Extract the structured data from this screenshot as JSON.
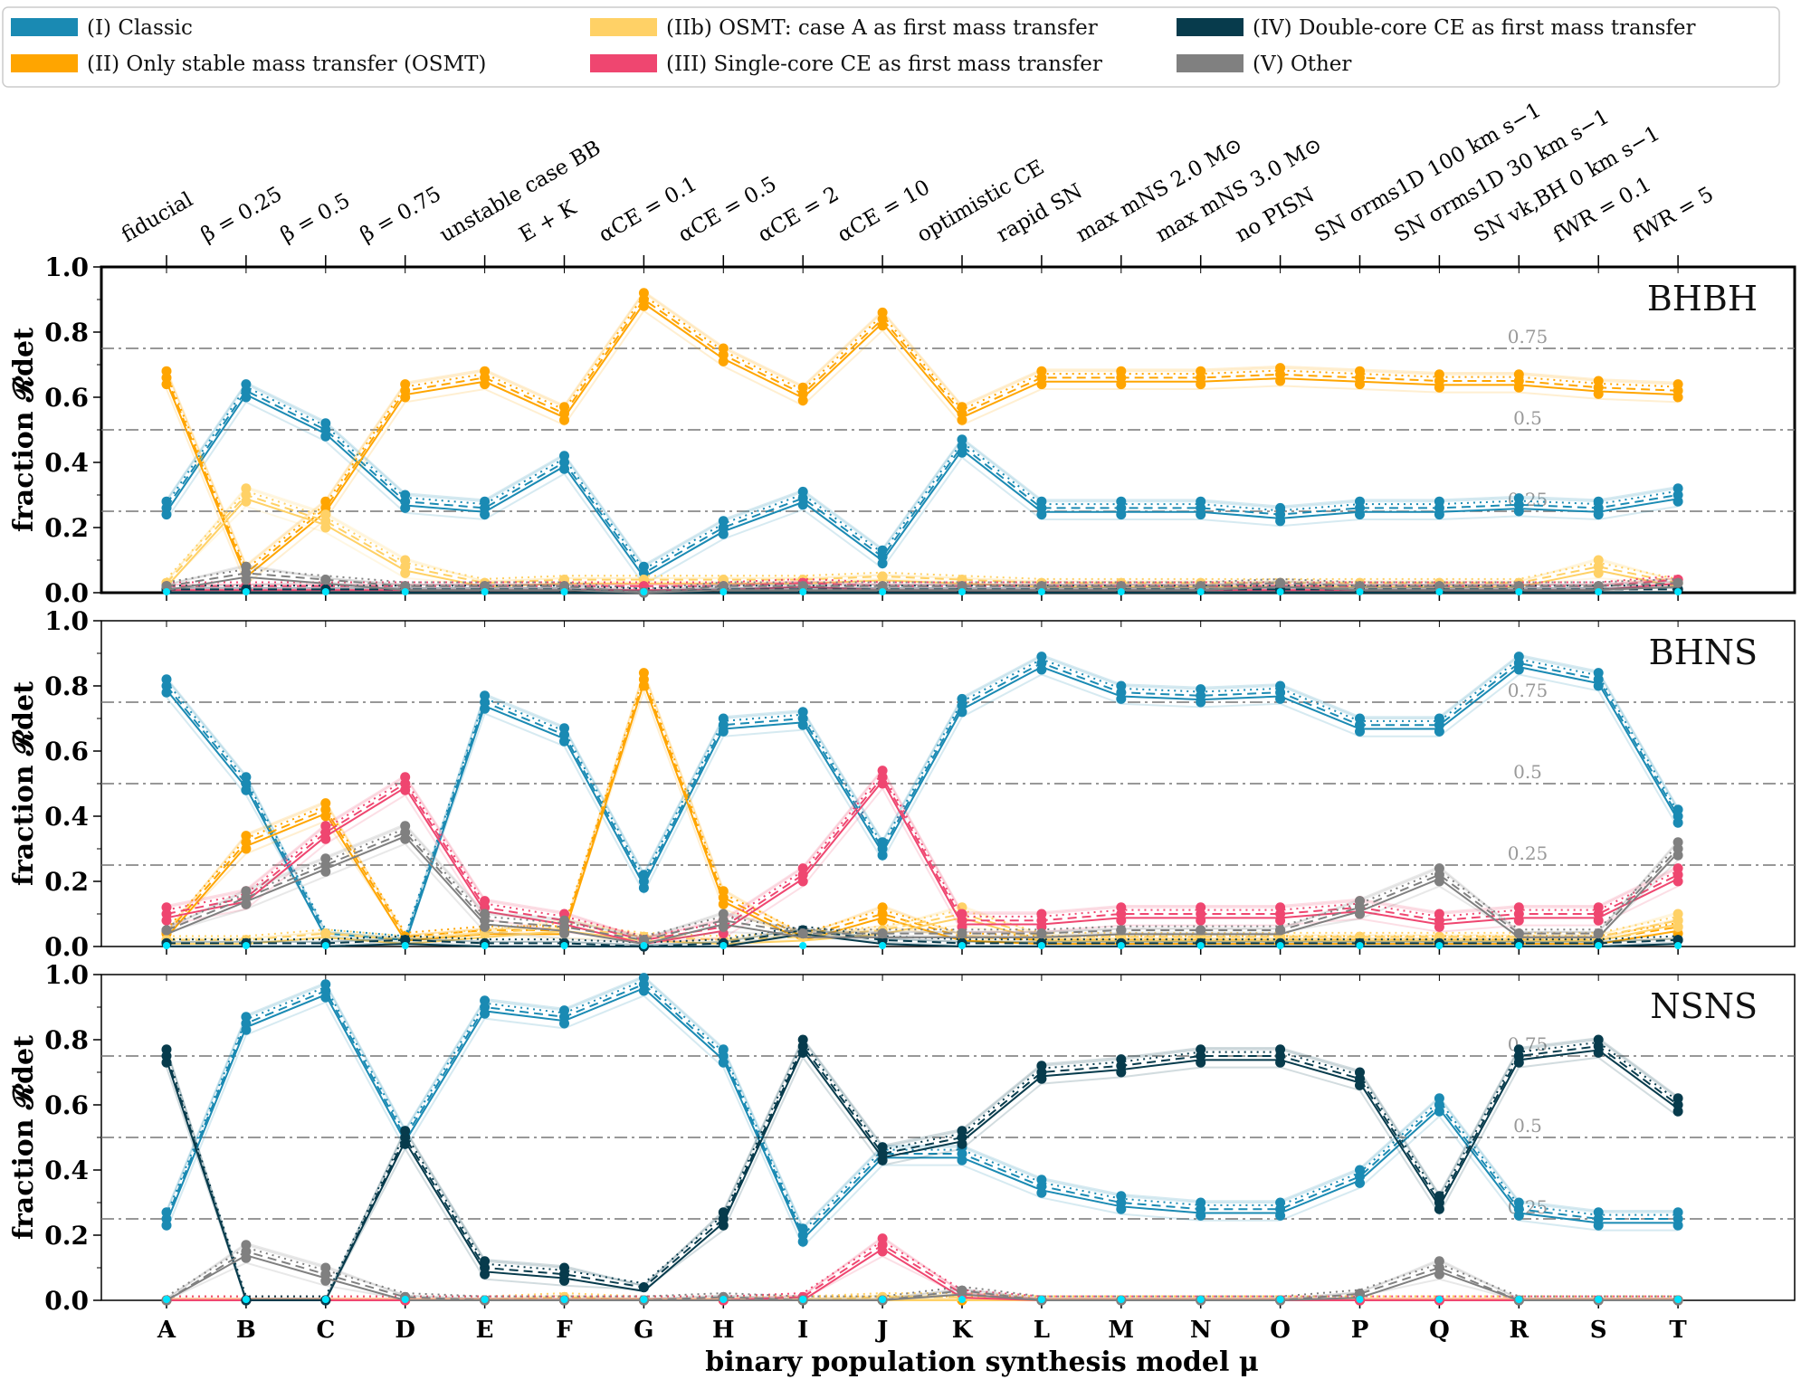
{
  "legend": [
    {
      "label": "(I) Classic",
      "color": "#1a8ab3"
    },
    {
      "label": "(II) Only stable mass transfer (OSMT)",
      "color": "#ffa500"
    },
    {
      "label": "(IIb) OSMT: case A as first mass transfer",
      "color": "#ffd166"
    },
    {
      "label": "(III) Single-core CE as first mass transfer",
      "color": "#ef4670"
    },
    {
      "label": "(IV) Double-core CE as first mass transfer",
      "color": "#073b4c"
    },
    {
      "label": "(V) Other",
      "color": "#808080"
    }
  ],
  "top_labels": [
    "fiducial",
    "β = 0.25",
    "β = 0.5",
    "β = 0.75",
    "unstable case BB",
    "E + K",
    "αCE = 0.1",
    "αCE = 0.5",
    "αCE = 2",
    "αCE = 10",
    "optimistic CE",
    "rapid SN",
    "max mNS 2.0 M⊙",
    "max mNS 3.0 M⊙",
    "no PISN",
    "SN σrms1D 100 km s−1",
    "SN σrms1D 30 km s−1",
    "SN vk,BH 0 km s−1",
    "fWR = 0.1",
    "fWR = 5"
  ],
  "ylabel": "fraction 𝓡det",
  "xlabel": "binary population synthesis model μ",
  "chart_data": {
    "type": "line",
    "categories": [
      "A",
      "B",
      "C",
      "D",
      "E",
      "F",
      "G",
      "H",
      "I",
      "J",
      "K",
      "L",
      "M",
      "N",
      "O",
      "P",
      "Q",
      "R",
      "S",
      "T"
    ],
    "ylim": [
      0,
      1
    ],
    "yticks": [
      "0.0",
      "0.2",
      "0.4",
      "0.6",
      "0.8",
      "1.0"
    ],
    "reference_lines": [
      {
        "value": 0.25,
        "label": "0.25"
      },
      {
        "value": 0.5,
        "label": "0.5"
      },
      {
        "value": 0.75,
        "label": "0.75"
      }
    ],
    "panels": [
      {
        "name": "BHBH",
        "series": [
          {
            "name": "(I) Classic",
            "values": [
              0.26,
              0.62,
              0.5,
              0.28,
              0.26,
              0.4,
              0.06,
              0.2,
              0.29,
              0.11,
              0.45,
              0.26,
              0.26,
              0.26,
              0.24,
              0.26,
              0.26,
              0.27,
              0.26,
              0.3
            ]
          },
          {
            "name": "(II) Only stable mass transfer (OSMT)",
            "values": [
              0.66,
              0.06,
              0.26,
              0.62,
              0.66,
              0.55,
              0.9,
              0.73,
              0.61,
              0.84,
              0.55,
              0.66,
              0.66,
              0.66,
              0.67,
              0.66,
              0.65,
              0.65,
              0.63,
              0.62
            ]
          },
          {
            "name": "(IIb) OSMT: case A as first mass transfer",
            "values": [
              0.03,
              0.3,
              0.22,
              0.08,
              0.03,
              0.04,
              0.04,
              0.04,
              0.04,
              0.05,
              0.04,
              0.03,
              0.03,
              0.03,
              0.03,
              0.03,
              0.03,
              0.03,
              0.08,
              0.03
            ]
          },
          {
            "name": "(III) Single-core CE as first mass transfer",
            "values": [
              0.02,
              0.02,
              0.02,
              0.02,
              0.02,
              0.02,
              0.02,
              0.02,
              0.03,
              0.02,
              0.02,
              0.02,
              0.02,
              0.02,
              0.02,
              0.02,
              0.02,
              0.02,
              0.02,
              0.04
            ]
          },
          {
            "name": "(IV) Double-core CE as first mass transfer",
            "values": [
              0.01,
              0.01,
              0.01,
              0.01,
              0.01,
              0.01,
              0.0,
              0.01,
              0.01,
              0.01,
              0.01,
              0.01,
              0.01,
              0.01,
              0.01,
              0.01,
              0.01,
              0.01,
              0.01,
              0.01
            ]
          },
          {
            "name": "(V) Other",
            "values": [
              0.02,
              0.06,
              0.04,
              0.02,
              0.02,
              0.02,
              0.0,
              0.02,
              0.02,
              0.02,
              0.02,
              0.02,
              0.02,
              0.02,
              0.03,
              0.02,
              0.02,
              0.02,
              0.02,
              0.03
            ]
          }
        ]
      },
      {
        "name": "BHNS",
        "series": [
          {
            "name": "(I) Classic",
            "values": [
              0.8,
              0.5,
              0.04,
              0.02,
              0.75,
              0.65,
              0.2,
              0.68,
              0.7,
              0.3,
              0.74,
              0.87,
              0.78,
              0.77,
              0.78,
              0.68,
              0.68,
              0.87,
              0.82,
              0.4
            ]
          },
          {
            "name": "(II) Only stable mass transfer (OSMT)",
            "values": [
              0.04,
              0.32,
              0.42,
              0.03,
              0.05,
              0.05,
              0.82,
              0.15,
              0.03,
              0.1,
              0.03,
              0.02,
              0.02,
              0.02,
              0.02,
              0.02,
              0.02,
              0.02,
              0.02,
              0.06
            ]
          },
          {
            "name": "(IIb) OSMT: case A as first mass transfer",
            "values": [
              0.02,
              0.02,
              0.04,
              0.02,
              0.04,
              0.06,
              0.03,
              0.02,
              0.03,
              0.05,
              0.1,
              0.03,
              0.03,
              0.03,
              0.03,
              0.03,
              0.03,
              0.03,
              0.03,
              0.08
            ]
          },
          {
            "name": "(III) Single-core CE as first mass transfer",
            "values": [
              0.1,
              0.15,
              0.35,
              0.5,
              0.12,
              0.08,
              0.02,
              0.06,
              0.22,
              0.52,
              0.08,
              0.08,
              0.1,
              0.1,
              0.1,
              0.12,
              0.08,
              0.1,
              0.1,
              0.22
            ]
          },
          {
            "name": "(IV) Double-core CE as first mass transfer",
            "values": [
              0.01,
              0.01,
              0.01,
              0.02,
              0.01,
              0.01,
              0.0,
              0.01,
              0.05,
              0.02,
              0.01,
              0.01,
              0.01,
              0.01,
              0.01,
              0.01,
              0.01,
              0.01,
              0.01,
              0.02
            ]
          },
          {
            "name": "(V) Other",
            "values": [
              0.05,
              0.15,
              0.25,
              0.35,
              0.08,
              0.06,
              0.02,
              0.08,
              0.04,
              0.04,
              0.04,
              0.04,
              0.05,
              0.05,
              0.05,
              0.12,
              0.22,
              0.04,
              0.04,
              0.3
            ]
          }
        ]
      },
      {
        "name": "NSNS",
        "series": [
          {
            "name": "(I) Classic",
            "values": [
              0.25,
              0.85,
              0.95,
              0.5,
              0.9,
              0.87,
              0.97,
              0.75,
              0.2,
              0.45,
              0.45,
              0.35,
              0.3,
              0.28,
              0.28,
              0.38,
              0.6,
              0.28,
              0.25,
              0.25
            ]
          },
          {
            "name": "(II) Only stable mass transfer (OSMT)",
            "values": [
              0.0,
              0.0,
              0.0,
              0.0,
              0.0,
              0.0,
              0.0,
              0.0,
              0.0,
              0.0,
              0.0,
              0.0,
              0.0,
              0.0,
              0.0,
              0.0,
              0.0,
              0.0,
              0.0,
              0.0
            ]
          },
          {
            "name": "(IIb) OSMT: case A as first mass transfer",
            "values": [
              0.0,
              0.0,
              0.0,
              0.0,
              0.0,
              0.01,
              0.0,
              0.0,
              0.0,
              0.01,
              0.01,
              0.0,
              0.0,
              0.0,
              0.0,
              0.0,
              0.0,
              0.0,
              0.0,
              0.0
            ]
          },
          {
            "name": "(III) Single-core CE as first mass transfer",
            "values": [
              0.0,
              0.0,
              0.0,
              0.0,
              0.0,
              0.0,
              0.0,
              0.0,
              0.01,
              0.17,
              0.02,
              0.0,
              0.0,
              0.0,
              0.0,
              0.0,
              0.0,
              0.0,
              0.0,
              0.0
            ]
          },
          {
            "name": "(IV) Double-core CE as first mass transfer",
            "values": [
              0.75,
              0.0,
              0.0,
              0.5,
              0.1,
              0.08,
              0.04,
              0.25,
              0.78,
              0.45,
              0.5,
              0.7,
              0.72,
              0.75,
              0.75,
              0.68,
              0.3,
              0.75,
              0.78,
              0.6
            ]
          },
          {
            "name": "(V) Other",
            "values": [
              0.0,
              0.15,
              0.08,
              0.01,
              0.0,
              0.0,
              0.0,
              0.01,
              0.0,
              0.0,
              0.03,
              0.0,
              0.0,
              0.0,
              0.0,
              0.02,
              0.1,
              0.0,
              0.0,
              0.0
            ]
          }
        ]
      }
    ]
  }
}
